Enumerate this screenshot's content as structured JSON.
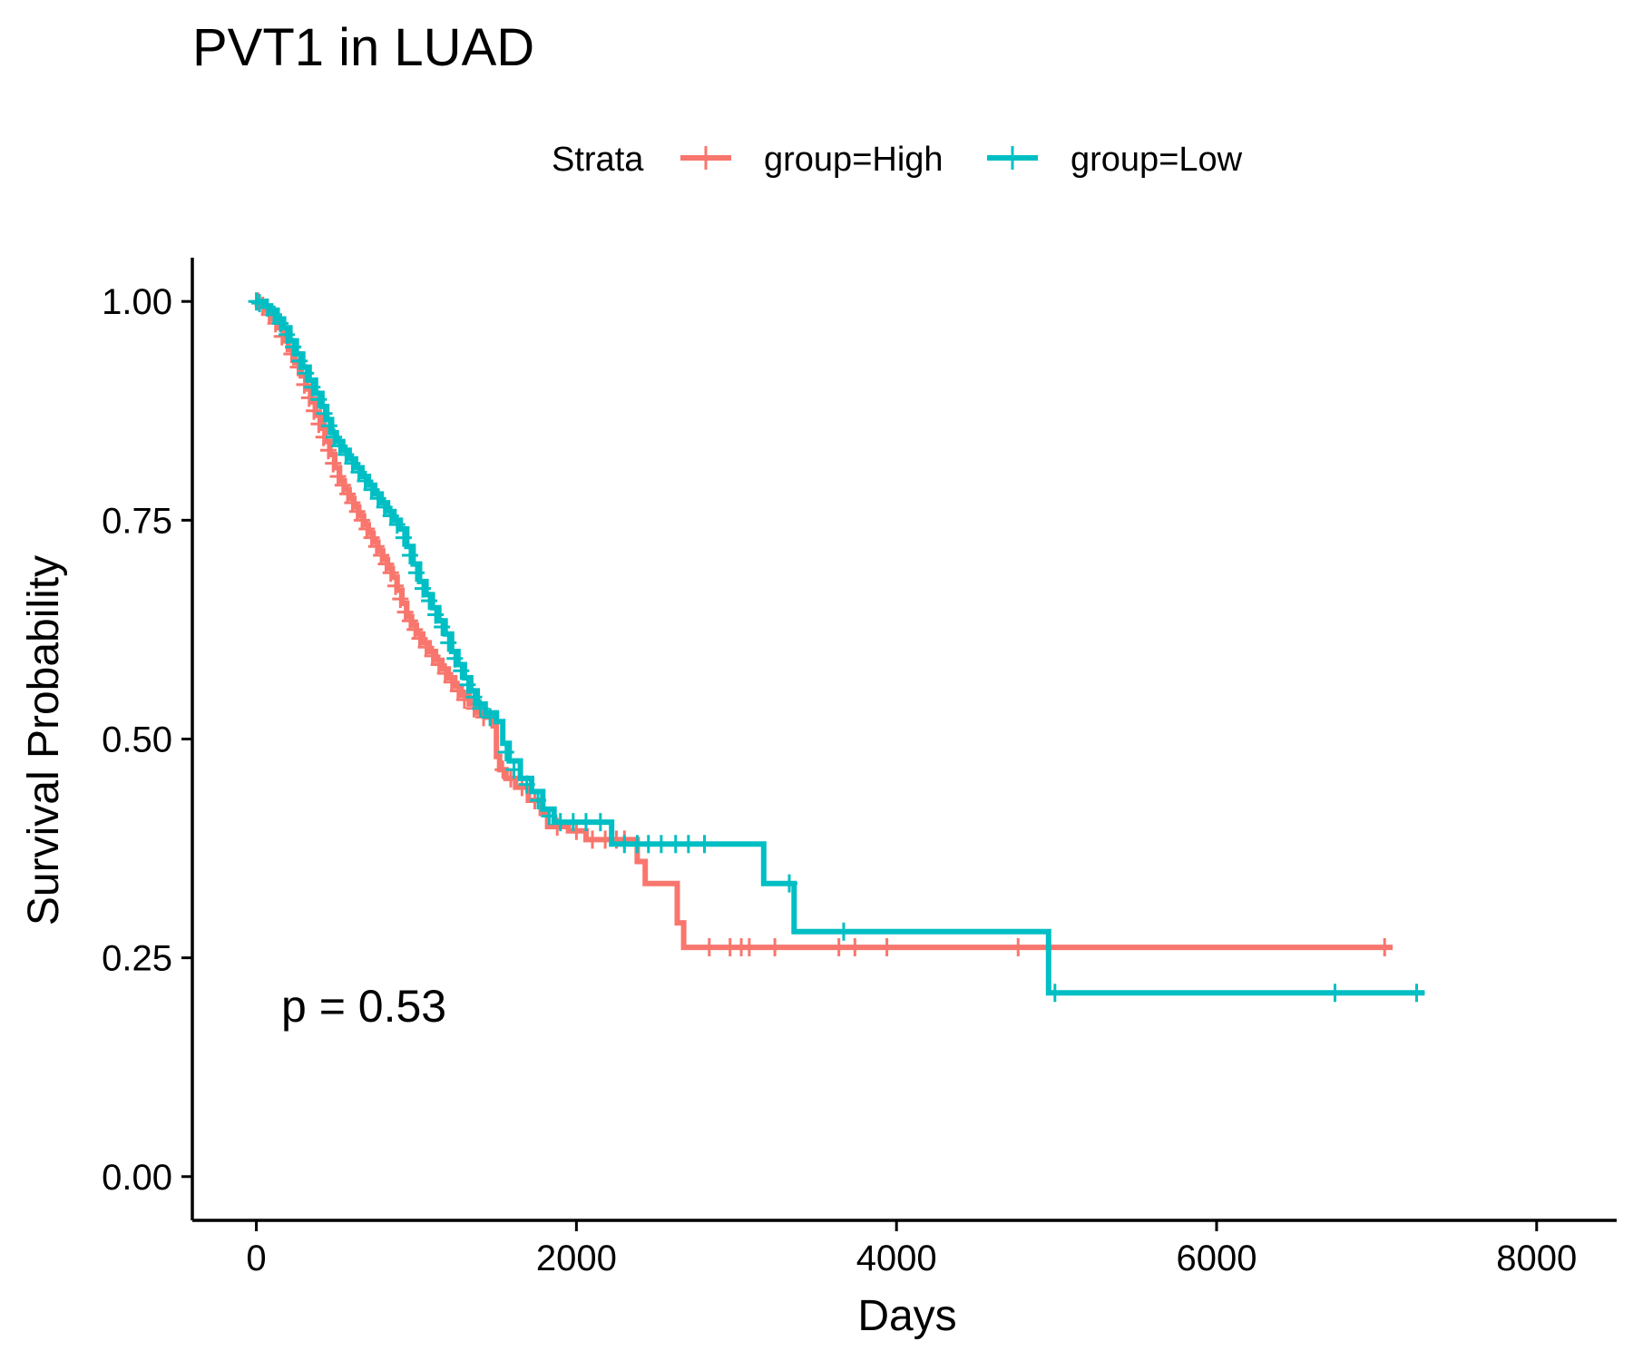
{
  "chart_data": {
    "type": "line",
    "title": "PVT1 in LUAD",
    "xlabel": "Days",
    "ylabel": "Survival Probability",
    "xlim": [
      -400,
      8500
    ],
    "ylim": [
      -0.05,
      1.05
    ],
    "xticks": [
      0,
      2000,
      4000,
      6000,
      8000
    ],
    "xtick_labels": [
      "0",
      "2000",
      "4000",
      "6000",
      "8000"
    ],
    "yticks": [
      0,
      0.25,
      0.5,
      0.75,
      1.0
    ],
    "ytick_labels": [
      "0.00",
      "0.25",
      "0.50",
      "0.75",
      "1.00"
    ],
    "grid": false,
    "legend": {
      "title": "Strata",
      "placement": "top"
    },
    "annotation": "p = 0.53",
    "series": [
      {
        "name": "group=High",
        "color": "#F8766D",
        "steps": [
          [
            0,
            1.0
          ],
          [
            60,
            0.99
          ],
          [
            100,
            0.98
          ],
          [
            130,
            0.97
          ],
          [
            170,
            0.955
          ],
          [
            200,
            0.945
          ],
          [
            240,
            0.93
          ],
          [
            280,
            0.915
          ],
          [
            310,
            0.9
          ],
          [
            340,
            0.885
          ],
          [
            370,
            0.87
          ],
          [
            400,
            0.855
          ],
          [
            430,
            0.84
          ],
          [
            460,
            0.825
          ],
          [
            490,
            0.81
          ],
          [
            520,
            0.795
          ],
          [
            550,
            0.785
          ],
          [
            580,
            0.775
          ],
          [
            610,
            0.765
          ],
          [
            640,
            0.755
          ],
          [
            670,
            0.745
          ],
          [
            700,
            0.735
          ],
          [
            730,
            0.725
          ],
          [
            760,
            0.715
          ],
          [
            790,
            0.705
          ],
          [
            820,
            0.695
          ],
          [
            850,
            0.685
          ],
          [
            880,
            0.67
          ],
          [
            910,
            0.655
          ],
          [
            940,
            0.64
          ],
          [
            970,
            0.63
          ],
          [
            1000,
            0.62
          ],
          [
            1040,
            0.61
          ],
          [
            1080,
            0.6
          ],
          [
            1120,
            0.59
          ],
          [
            1160,
            0.58
          ],
          [
            1200,
            0.57
          ],
          [
            1240,
            0.56
          ],
          [
            1280,
            0.55
          ],
          [
            1330,
            0.54
          ],
          [
            1380,
            0.53
          ],
          [
            1430,
            0.525
          ],
          [
            1480,
            0.515
          ],
          [
            1500,
            0.48
          ],
          [
            1520,
            0.465
          ],
          [
            1560,
            0.455
          ],
          [
            1620,
            0.445
          ],
          [
            1700,
            0.43
          ],
          [
            1780,
            0.415
          ],
          [
            1820,
            0.4
          ],
          [
            1950,
            0.395
          ],
          [
            2060,
            0.385
          ],
          [
            2380,
            0.36
          ],
          [
            2430,
            0.335
          ],
          [
            2630,
            0.29
          ],
          [
            2670,
            0.262
          ],
          [
            7100,
            0.262
          ]
        ],
        "censors": [
          [
            10,
            1.0
          ],
          [
            40,
            0.995
          ],
          [
            80,
            0.985
          ],
          [
            120,
            0.975
          ],
          [
            160,
            0.96
          ],
          [
            220,
            0.94
          ],
          [
            260,
            0.925
          ],
          [
            300,
            0.905
          ],
          [
            330,
            0.89
          ],
          [
            360,
            0.875
          ],
          [
            390,
            0.86
          ],
          [
            420,
            0.845
          ],
          [
            450,
            0.83
          ],
          [
            480,
            0.815
          ],
          [
            510,
            0.8
          ],
          [
            540,
            0.79
          ],
          [
            570,
            0.78
          ],
          [
            600,
            0.77
          ],
          [
            630,
            0.76
          ],
          [
            660,
            0.75
          ],
          [
            690,
            0.74
          ],
          [
            720,
            0.73
          ],
          [
            750,
            0.72
          ],
          [
            780,
            0.71
          ],
          [
            810,
            0.7
          ],
          [
            840,
            0.69
          ],
          [
            870,
            0.675
          ],
          [
            900,
            0.66
          ],
          [
            930,
            0.645
          ],
          [
            960,
            0.635
          ],
          [
            990,
            0.625
          ],
          [
            1020,
            0.615
          ],
          [
            1060,
            0.605
          ],
          [
            1100,
            0.595
          ],
          [
            1140,
            0.585
          ],
          [
            1180,
            0.575
          ],
          [
            1220,
            0.565
          ],
          [
            1260,
            0.555
          ],
          [
            1300,
            0.545
          ],
          [
            1360,
            0.535
          ],
          [
            1420,
            0.525
          ],
          [
            1540,
            0.465
          ],
          [
            1590,
            0.455
          ],
          [
            1660,
            0.445
          ],
          [
            1740,
            0.43
          ],
          [
            1880,
            0.4
          ],
          [
            2000,
            0.395
          ],
          [
            2100,
            0.385
          ],
          [
            2180,
            0.385
          ],
          [
            2250,
            0.385
          ],
          [
            2300,
            0.385
          ],
          [
            2830,
            0.262
          ],
          [
            2960,
            0.262
          ],
          [
            3030,
            0.262
          ],
          [
            3080,
            0.262
          ],
          [
            3240,
            0.262
          ],
          [
            3640,
            0.262
          ],
          [
            3740,
            0.262
          ],
          [
            3940,
            0.262
          ],
          [
            4760,
            0.262
          ],
          [
            7050,
            0.262
          ]
        ]
      },
      {
        "name": "group=Low",
        "color": "#00BFC4",
        "steps": [
          [
            0,
            1.0
          ],
          [
            50,
            0.995
          ],
          [
            90,
            0.99
          ],
          [
            130,
            0.98
          ],
          [
            170,
            0.97
          ],
          [
            210,
            0.955
          ],
          [
            250,
            0.94
          ],
          [
            290,
            0.925
          ],
          [
            330,
            0.91
          ],
          [
            370,
            0.895
          ],
          [
            410,
            0.88
          ],
          [
            440,
            0.865
          ],
          [
            470,
            0.85
          ],
          [
            500,
            0.84
          ],
          [
            540,
            0.83
          ],
          [
            580,
            0.82
          ],
          [
            620,
            0.81
          ],
          [
            660,
            0.8
          ],
          [
            700,
            0.79
          ],
          [
            740,
            0.78
          ],
          [
            780,
            0.77
          ],
          [
            820,
            0.76
          ],
          [
            860,
            0.75
          ],
          [
            900,
            0.74
          ],
          [
            940,
            0.72
          ],
          [
            980,
            0.7
          ],
          [
            1020,
            0.68
          ],
          [
            1060,
            0.665
          ],
          [
            1100,
            0.65
          ],
          [
            1140,
            0.635
          ],
          [
            1180,
            0.62
          ],
          [
            1220,
            0.6
          ],
          [
            1260,
            0.585
          ],
          [
            1300,
            0.57
          ],
          [
            1340,
            0.555
          ],
          [
            1380,
            0.54
          ],
          [
            1430,
            0.53
          ],
          [
            1500,
            0.52
          ],
          [
            1540,
            0.495
          ],
          [
            1580,
            0.475
          ],
          [
            1650,
            0.455
          ],
          [
            1720,
            0.44
          ],
          [
            1790,
            0.42
          ],
          [
            1860,
            0.405
          ],
          [
            2220,
            0.38
          ],
          [
            3170,
            0.335
          ],
          [
            3360,
            0.28
          ],
          [
            4950,
            0.21
          ],
          [
            7300,
            0.21
          ]
        ],
        "censors": [
          [
            0,
            1.0
          ],
          [
            20,
            0.998
          ],
          [
            70,
            0.993
          ],
          [
            110,
            0.985
          ],
          [
            150,
            0.975
          ],
          [
            190,
            0.962
          ],
          [
            230,
            0.948
          ],
          [
            270,
            0.932
          ],
          [
            310,
            0.918
          ],
          [
            350,
            0.902
          ],
          [
            390,
            0.888
          ],
          [
            425,
            0.872
          ],
          [
            455,
            0.858
          ],
          [
            485,
            0.845
          ],
          [
            520,
            0.835
          ],
          [
            560,
            0.825
          ],
          [
            600,
            0.815
          ],
          [
            640,
            0.805
          ],
          [
            680,
            0.795
          ],
          [
            720,
            0.785
          ],
          [
            760,
            0.775
          ],
          [
            800,
            0.765
          ],
          [
            840,
            0.755
          ],
          [
            880,
            0.745
          ],
          [
            920,
            0.73
          ],
          [
            960,
            0.71
          ],
          [
            1000,
            0.69
          ],
          [
            1040,
            0.672
          ],
          [
            1080,
            0.658
          ],
          [
            1120,
            0.642
          ],
          [
            1160,
            0.628
          ],
          [
            1200,
            0.61
          ],
          [
            1240,
            0.592
          ],
          [
            1280,
            0.578
          ],
          [
            1320,
            0.562
          ],
          [
            1360,
            0.548
          ],
          [
            1400,
            0.535
          ],
          [
            1460,
            0.525
          ],
          [
            1560,
            0.485
          ],
          [
            1610,
            0.465
          ],
          [
            1690,
            0.448
          ],
          [
            1760,
            0.43
          ],
          [
            1830,
            0.412
          ],
          [
            1900,
            0.405
          ],
          [
            1980,
            0.405
          ],
          [
            2060,
            0.405
          ],
          [
            2150,
            0.405
          ],
          [
            2300,
            0.38
          ],
          [
            2380,
            0.38
          ],
          [
            2450,
            0.38
          ],
          [
            2530,
            0.38
          ],
          [
            2620,
            0.38
          ],
          [
            2700,
            0.38
          ],
          [
            2800,
            0.38
          ],
          [
            3330,
            0.335
          ],
          [
            3670,
            0.28
          ],
          [
            4990,
            0.21
          ],
          [
            6740,
            0.21
          ],
          [
            7250,
            0.21
          ]
        ]
      }
    ]
  }
}
